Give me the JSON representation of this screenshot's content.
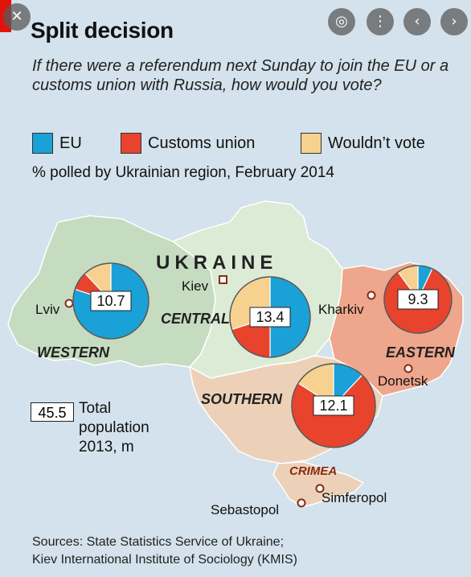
{
  "chart_data": {
    "type": "pie",
    "title": "Split decision",
    "subtitle": "If there were a referendum next Sunday to join the EU or a customs union with Russia, how would you vote?",
    "note": "% polled by Ukrainian region, February 2014",
    "legend": [
      {
        "label": "EU",
        "color": "#1aa1d8"
      },
      {
        "label": "Customs union",
        "color": "#e8432c"
      },
      {
        "label": "Wouldn’t vote",
        "color": "#f7d18f"
      }
    ],
    "regions": [
      {
        "name": "WESTERN",
        "population": "10.7",
        "eu": 80,
        "customs": 8,
        "wouldnt": 12
      },
      {
        "name": "CENTRAL",
        "population": "13.4",
        "eu": 50,
        "customs": 20,
        "wouldnt": 30
      },
      {
        "name": "EASTERN",
        "population": "9.3",
        "eu": 7,
        "customs": 83,
        "wouldnt": 10
      },
      {
        "name": "SOUTHERN",
        "population": "12.1",
        "eu": 12,
        "customs": 72,
        "wouldnt": 16
      }
    ],
    "country_label": "UKRAINE",
    "regional_label": "CRIMEA",
    "cities": [
      "Kiev",
      "Lviv",
      "Kharkiv",
      "Donetsk",
      "Simferopol",
      "Sebastopol"
    ],
    "population_key": {
      "value": "45.5",
      "label": "Total population 2013, m"
    }
  },
  "sources": [
    "Sources: State Statistics Service of Ukraine;",
    "Kiev International Institute of Sociology (KMIS)"
  ],
  "toolbar": {
    "close_icon": "close-icon",
    "lens_icon": "lens-icon",
    "more_icon": "more-icon",
    "prev_icon": "chevron-left-icon",
    "next_icon": "chevron-right-icon"
  }
}
